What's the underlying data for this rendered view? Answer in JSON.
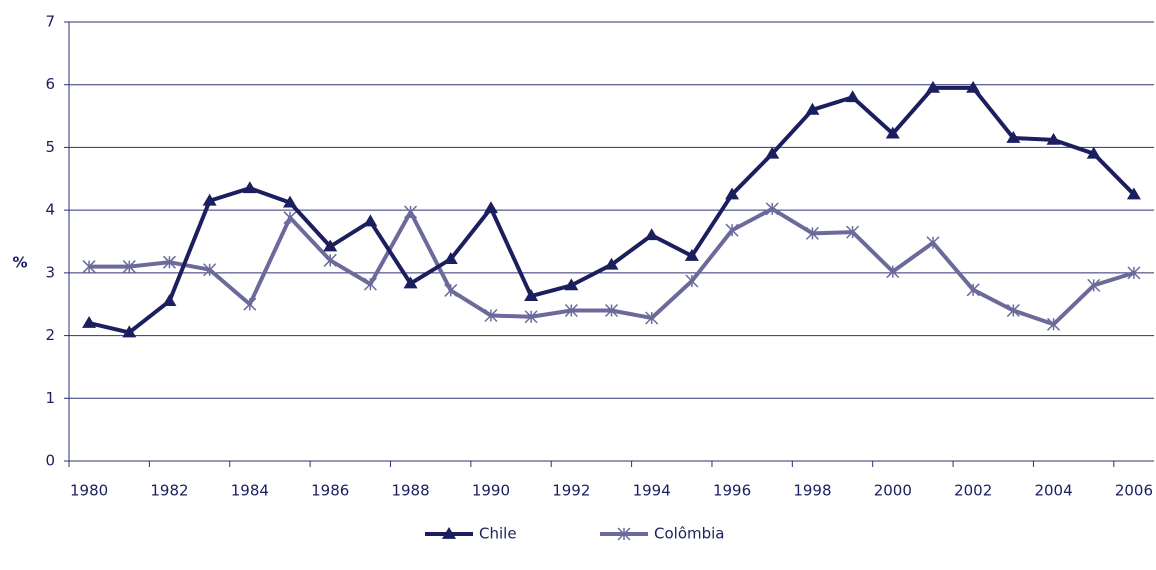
{
  "chart_data": {
    "type": "line",
    "categories": [
      "1980",
      null,
      "1982",
      null,
      "1984",
      null,
      "1986",
      null,
      "1988",
      null,
      "1990",
      null,
      "1992",
      null,
      "1994",
      null,
      "1996",
      null,
      "1998",
      null,
      "2000",
      null,
      "2002",
      null,
      "2004",
      null,
      "2006"
    ],
    "series": [
      {
        "name": "Chile",
        "color": "#1b1f5e",
        "marker": "triangle",
        "values": [
          2.2,
          2.05,
          2.55,
          4.15,
          4.35,
          4.12,
          3.42,
          3.82,
          2.83,
          3.22,
          4.03,
          2.63,
          2.8,
          3.13,
          3.6,
          3.27,
          4.25,
          4.9,
          5.6,
          5.8,
          5.22,
          5.95,
          5.95,
          5.15,
          5.12,
          4.9,
          4.25
        ]
      },
      {
        "name": "Colômbia",
        "color": "#6b6a9a",
        "marker": "asterisk",
        "values": [
          3.1,
          3.1,
          3.17,
          3.05,
          2.5,
          3.88,
          3.2,
          2.82,
          3.97,
          2.72,
          2.32,
          2.3,
          2.4,
          2.4,
          2.28,
          2.87,
          3.68,
          4.02,
          3.63,
          3.65,
          3.02,
          3.48,
          2.73,
          2.4,
          2.18,
          2.8,
          3.0
        ]
      }
    ],
    "ylabel": "%",
    "ylim": [
      0,
      7
    ],
    "yticks": [
      0,
      1,
      2,
      3,
      4,
      5,
      6,
      7
    ],
    "grid": true,
    "legend": "bottom"
  }
}
